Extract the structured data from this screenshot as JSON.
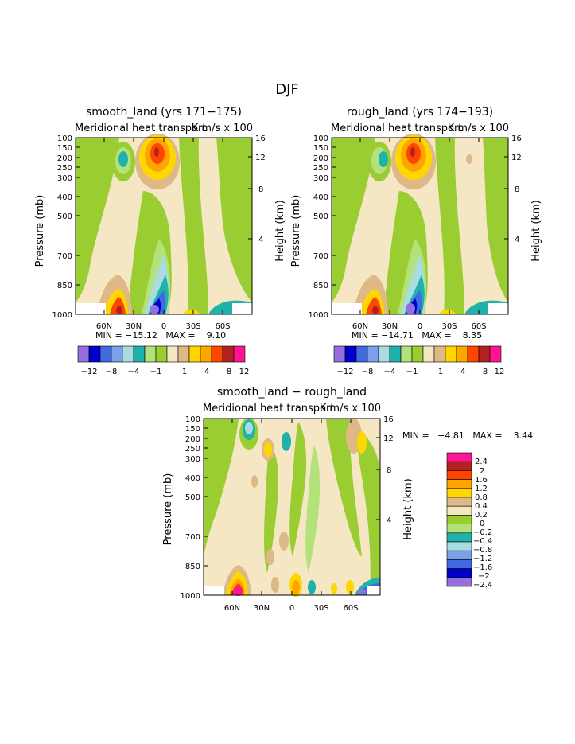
{
  "page_title": "DJF",
  "colors": {
    "palette13": [
      "#9370DB",
      "#0000CD",
      "#4169E1",
      "#7B9FE8",
      "#A8DCE0",
      "#20B2AA",
      "#9ACD32",
      "#F5E6C4",
      "#DEB887",
      "#FFD700",
      "#FFA500",
      "#FF4500",
      "#B22222",
      "#FFB6C1",
      "#FF1493"
    ],
    "bar_main": [
      "#9370DB",
      "#0000CD",
      "#4169E1",
      "#7B9FE8",
      "#A8DCE0",
      "#20B2AA",
      "#B4E27A",
      "#9ACD32",
      "#F5E6C4",
      "#DEB887",
      "#FFD700",
      "#FFA500",
      "#FF4500",
      "#B22222",
      "#FF1493"
    ]
  },
  "chart_data": [
    {
      "type": "heatmap",
      "title": "smooth_land (yrs 171−175)",
      "subtitle_left": "Meridional heat transport",
      "subtitle_right": "K m/s x 100",
      "ylabel": "Pressure (mb)",
      "ylabel_right": "Height (km)",
      "yticks": [
        "100",
        "150",
        "200",
        "250",
        "300",
        "400",
        "500",
        "700",
        "850",
        "1000"
      ],
      "yticks_right": [
        "16",
        "12",
        "8",
        "4"
      ],
      "xticks": [
        "60N",
        "30N",
        "0",
        "30S",
        "60S"
      ],
      "stats": "MIN = −15.12   MAX =    9.10",
      "min": -15.12,
      "max": 9.1,
      "colorbar_labels": [
        "−12",
        "−8",
        "−4",
        "−1",
        "1",
        "4",
        "8",
        "12"
      ]
    },
    {
      "type": "heatmap",
      "title": "rough_land (yrs 174−193)",
      "subtitle_left": "Meridional heat transport",
      "subtitle_right": "K m/s x 100",
      "ylabel": "Pressure (mb)",
      "ylabel_right": "Height (km)",
      "yticks": [
        "100",
        "150",
        "200",
        "250",
        "300",
        "400",
        "500",
        "700",
        "850",
        "1000"
      ],
      "yticks_right": [
        "16",
        "12",
        "8",
        "4"
      ],
      "xticks": [
        "60N",
        "30N",
        "0",
        "30S",
        "60S"
      ],
      "stats": "MIN = −14.71   MAX =    8.35",
      "min": -14.71,
      "max": 8.35,
      "colorbar_labels": [
        "−12",
        "−8",
        "−4",
        "−1",
        "1",
        "4",
        "8",
        "12"
      ]
    },
    {
      "type": "heatmap",
      "title": "smooth_land − rough_land",
      "subtitle_left": "Meridional heat transport",
      "subtitle_right": "K m/s x 100",
      "ylabel": "Pressure (mb)",
      "ylabel_right": "Height (km)",
      "yticks": [
        "100",
        "150",
        "200",
        "250",
        "300",
        "400",
        "500",
        "700",
        "850",
        "1000"
      ],
      "yticks_right": [
        "16",
        "12",
        "8",
        "4"
      ],
      "xticks": [
        "60N",
        "30N",
        "0",
        "30S",
        "60S"
      ],
      "stats": "MIN =   −4.81   MAX =    3.44",
      "min": -4.81,
      "max": 3.44,
      "colorbar_labels": [
        "2.4",
        "2",
        "1.6",
        "1.2",
        "0.8",
        "0.4",
        "0.2",
        "0",
        "−0.2",
        "−0.4",
        "−0.8",
        "−1.2",
        "−1.6",
        "−2",
        "−2.4"
      ]
    }
  ]
}
